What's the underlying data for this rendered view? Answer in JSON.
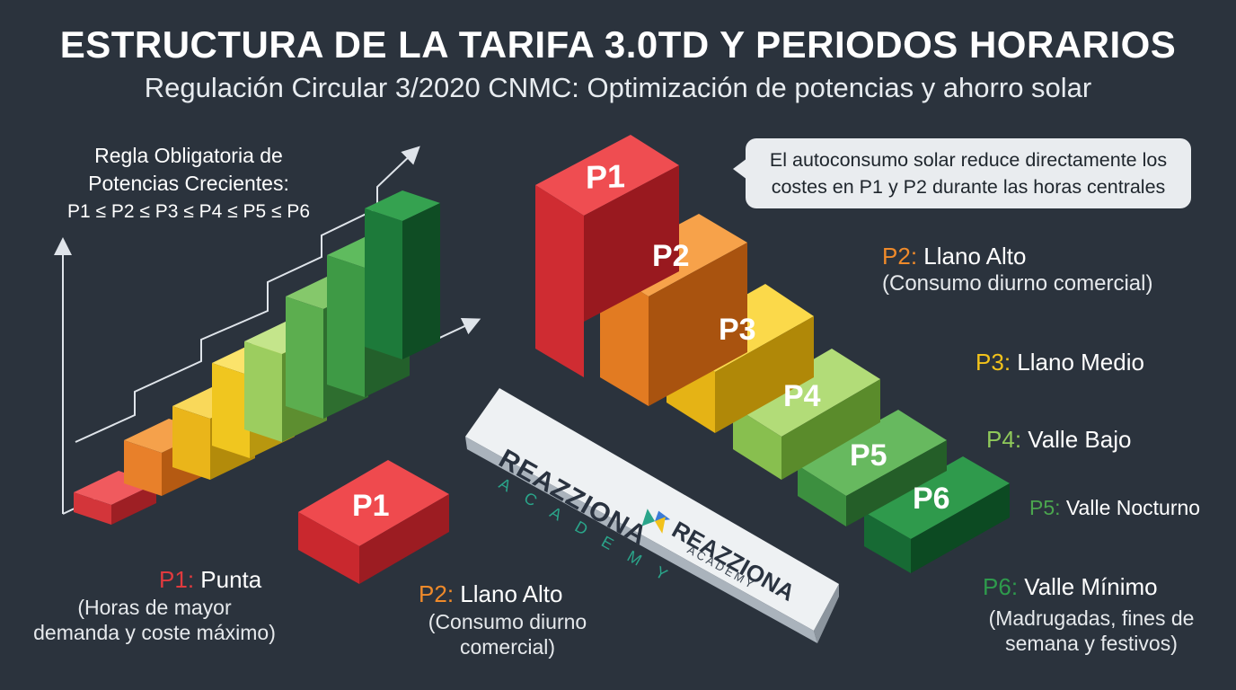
{
  "title": "ESTRUCTURA DE LA TARIFA 3.0TD Y PERIODOS HORARIOS",
  "subtitle": "Regulación Circular 3/2020 CNMC: Optimización de potencias y ahorro solar",
  "rule": {
    "line1": "Regla Obligatoria de",
    "line2": "Potencias Crecientes:",
    "formula": "P1 ≤ P2 ≤ P3 ≤ P4 ≤ P5 ≤ P6"
  },
  "callout": {
    "line1": "El autoconsumo solar reduce directamente los",
    "line2": "costes en P1 y P2 durante las horas centrales"
  },
  "periods": {
    "p1": {
      "code": "P1",
      "colon": ":",
      "name": "Punta",
      "desc1": "(Horas de mayor",
      "desc2": "demanda y coste máximo)",
      "color": "#e03a3e"
    },
    "p2": {
      "code": "P2",
      "colon": ":",
      "name": "Llano Alto",
      "desc1": "(Consumo diurno comercial)",
      "color": "#ef8a2a"
    },
    "p2b": {
      "code": "P2",
      "colon": ":",
      "name": "Llano Alto",
      "desc1": "(Consumo diurno",
      "desc2": "comercial)",
      "color": "#ef8a2a"
    },
    "p3": {
      "code": "P3",
      "colon": ":",
      "name": "Llano Medio",
      "color": "#f2c21b"
    },
    "p4": {
      "code": "P4",
      "colon": ":",
      "name": "Valle Bajo",
      "color": "#8fc95a"
    },
    "p5": {
      "code": "P5",
      "colon": ":",
      "name": "Valle Nocturno",
      "color": "#4ba64e"
    },
    "p6": {
      "code": "P6",
      "colon": ":",
      "name": "Valle Mínimo",
      "desc1": "(Madrugadas, fines de",
      "desc2": "semana y festivos)",
      "color": "#1f7a3c"
    }
  },
  "blocks": {
    "b1": "P1",
    "b2": "P2",
    "b3": "P3",
    "b4": "P4",
    "b5": "P5",
    "b6": "P6",
    "small": "P1"
  },
  "logo": {
    "brand": "REAZZIONA",
    "sub": "ACADEMY",
    "sub_spaced": "A C A D E M Y"
  },
  "colors": {
    "background": "#2b333d",
    "red": "#e03a3e",
    "orange": "#ef8a2a",
    "yellow": "#f2c21b",
    "lightgreen": "#8fc95a",
    "green": "#4ba64e",
    "darkgreen": "#1f7a3c"
  }
}
